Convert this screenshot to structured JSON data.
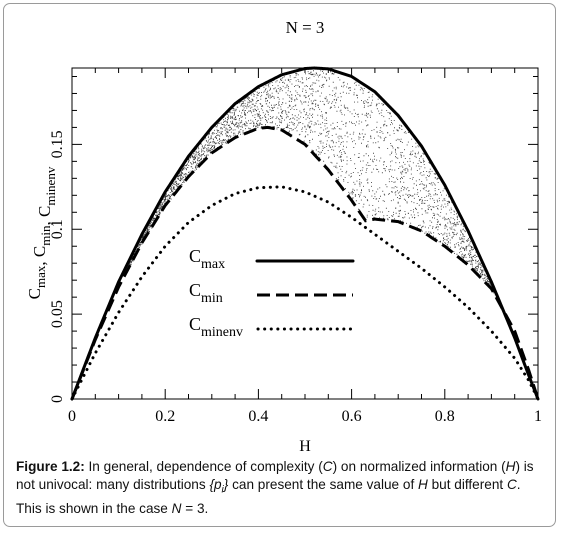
{
  "figure": {
    "caption_label": "Figure 1.2:",
    "caption_parts": [
      {
        "text": " In general, dependence of complexity (",
        "italic": false
      },
      {
        "text": "C",
        "italic": true
      },
      {
        "text": ") on normalized information (",
        "italic": false
      },
      {
        "text": "H",
        "italic": true
      },
      {
        "text": ") is not univocal: many distributions ",
        "italic": false
      },
      {
        "text": "{p",
        "italic": true
      },
      {
        "text": "i",
        "italic": true,
        "sub": true
      },
      {
        "text": "}",
        "italic": true
      },
      {
        "text": " can present the same value of ",
        "italic": false
      },
      {
        "text": "H",
        "italic": true
      },
      {
        "text": " but different ",
        "italic": false
      },
      {
        "text": "C",
        "italic": true
      },
      {
        "text": ". This is shown in the case ",
        "italic": false
      },
      {
        "text": "N",
        "italic": true
      },
      {
        "text": " = 3.",
        "italic": false
      }
    ]
  },
  "chart_data": {
    "type": "line",
    "title": "N = 3",
    "xlabel": "H",
    "ylabel_parts": [
      {
        "base": "C",
        "sub": "max"
      },
      {
        "base": ", C",
        "sub": "min"
      },
      {
        "base": ", C",
        "sub": "minenv"
      }
    ],
    "xlim": [
      0,
      1
    ],
    "ylim": [
      0,
      0.195
    ],
    "x_ticks": [
      0,
      0.2,
      0.4,
      0.6,
      0.8,
      1
    ],
    "x_tick_labels": [
      "0",
      "0.2",
      "0.4",
      "0.6",
      "0.8",
      "1"
    ],
    "y_ticks": [
      0,
      0.05,
      0.1,
      0.15
    ],
    "y_tick_labels": [
      "0",
      "0.05",
      "0.1",
      "0.15"
    ],
    "grid": false,
    "legend_position": "center",
    "series": [
      {
        "name_base": "C",
        "name_sub": "max",
        "style": "solid",
        "x": [
          0,
          0.05,
          0.1,
          0.15,
          0.2,
          0.25,
          0.3,
          0.35,
          0.4,
          0.45,
          0.5,
          0.52,
          0.55,
          0.6,
          0.65,
          0.7,
          0.75,
          0.8,
          0.85,
          0.9,
          0.95,
          0.98,
          1
        ],
        "y": [
          0,
          0.036,
          0.069,
          0.097,
          0.122,
          0.143,
          0.16,
          0.174,
          0.184,
          0.191,
          0.1947,
          0.195,
          0.1945,
          0.19,
          0.181,
          0.167,
          0.149,
          0.126,
          0.099,
          0.069,
          0.036,
          0.014,
          0
        ]
      },
      {
        "name_base": "C",
        "name_sub": "min",
        "style": "dashed",
        "x": [
          0,
          0.05,
          0.1,
          0.15,
          0.2,
          0.25,
          0.3,
          0.35,
          0.4,
          0.42,
          0.45,
          0.5,
          0.55,
          0.6,
          0.63,
          0.65,
          0.7,
          0.75,
          0.8,
          0.85,
          0.9,
          0.95,
          0.98,
          1
        ],
        "y": [
          0,
          0.035,
          0.066,
          0.092,
          0.114,
          0.131,
          0.145,
          0.154,
          0.1595,
          0.16,
          0.1585,
          0.15,
          0.135,
          0.117,
          0.105,
          0.106,
          0.1045,
          0.099,
          0.09,
          0.079,
          0.065,
          0.04,
          0.017,
          0
        ]
      },
      {
        "name_base": "C",
        "name_sub": "minenv",
        "style": "dotted",
        "x": [
          0,
          0.05,
          0.1,
          0.15,
          0.2,
          0.25,
          0.3,
          0.35,
          0.4,
          0.45,
          0.5,
          0.55,
          0.6,
          0.65,
          0.7,
          0.75,
          0.8,
          0.85,
          0.9,
          0.95,
          0.98,
          1
        ],
        "y": [
          0,
          0.027,
          0.051,
          0.072,
          0.09,
          0.104,
          0.114,
          0.121,
          0.1245,
          0.125,
          0.122,
          0.116,
          0.107,
          0.097,
          0.087,
          0.077,
          0.066,
          0.054,
          0.04,
          0.024,
          0.011,
          0
        ]
      }
    ]
  }
}
